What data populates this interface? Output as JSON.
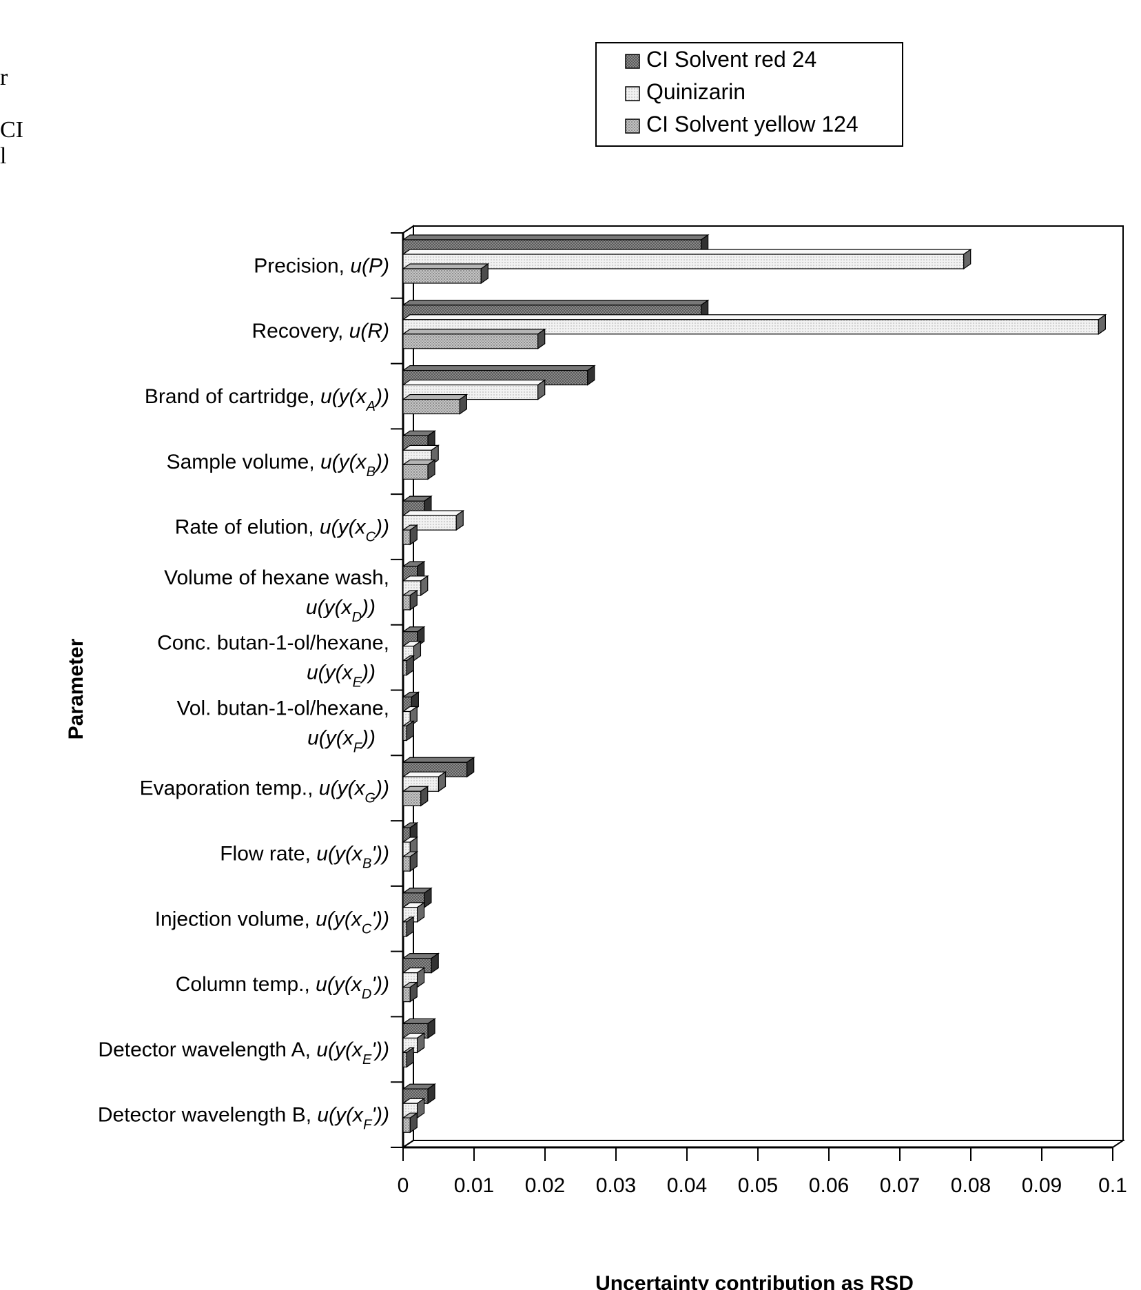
{
  "margin_fragments": [
    "r",
    "CI",
    "l"
  ],
  "chart_data": {
    "type": "bar",
    "orientation": "horizontal",
    "title": "",
    "xlabel": "Uncertainty contribution as RSD",
    "ylabel": "Parameter",
    "xlim": [
      0,
      0.1
    ],
    "xticks": [
      "0",
      "0.01",
      "0.02",
      "0.03",
      "0.04",
      "0.05",
      "0.06",
      "0.07",
      "0.08",
      "0.09",
      "0.1"
    ],
    "legend_position": "top-right",
    "grid": false,
    "categories": [
      [
        {
          "t": "Precision, "
        },
        {
          "t": "u(P)",
          "i": true
        }
      ],
      [
        {
          "t": "Recovery, "
        },
        {
          "t": "u(R)",
          "i": true
        }
      ],
      [
        {
          "t": "Brand of cartridge, "
        },
        {
          "t": "u(y(x",
          "i": true
        },
        {
          "t": "A",
          "i": true,
          "sub": true
        },
        {
          "t": "))",
          "i": true
        }
      ],
      [
        {
          "t": "Sample volume, "
        },
        {
          "t": "u(y(x",
          "i": true
        },
        {
          "t": "B",
          "i": true,
          "sub": true
        },
        {
          "t": "))",
          "i": true
        }
      ],
      [
        {
          "t": "Rate of elution, "
        },
        {
          "t": "u(y(x",
          "i": true
        },
        {
          "t": "C",
          "i": true,
          "sub": true
        },
        {
          "t": "))",
          "i": true
        }
      ],
      [
        {
          "t": "Volume of hexane wash,"
        },
        {
          "br": true
        },
        {
          "t": "u(y(x",
          "i": true
        },
        {
          "t": "D",
          "i": true,
          "sub": true
        },
        {
          "t": "))",
          "i": true
        }
      ],
      [
        {
          "t": "Conc. butan-1-ol/hexane,"
        },
        {
          "br": true
        },
        {
          "t": "u(y(x",
          "i": true
        },
        {
          "t": "E",
          "i": true,
          "sub": true
        },
        {
          "t": "))",
          "i": true
        }
      ],
      [
        {
          "t": "Vol. butan-1-ol/hexane,"
        },
        {
          "br": true
        },
        {
          "t": "u(y(x",
          "i": true
        },
        {
          "t": "F",
          "i": true,
          "sub": true
        },
        {
          "t": "))",
          "i": true
        }
      ],
      [
        {
          "t": "Evaporation temp., "
        },
        {
          "t": "u(y(x",
          "i": true
        },
        {
          "t": "G",
          "i": true,
          "sub": true
        },
        {
          "t": "))",
          "i": true
        }
      ],
      [
        {
          "t": "Flow rate, "
        },
        {
          "t": "u(y(x",
          "i": true
        },
        {
          "t": "B",
          "i": true,
          "sub": true
        },
        {
          "t": "'))",
          "i": true
        }
      ],
      [
        {
          "t": "Injection volume, "
        },
        {
          "t": "u(y(x",
          "i": true
        },
        {
          "t": "C",
          "i": true,
          "sub": true
        },
        {
          "t": "'))",
          "i": true
        }
      ],
      [
        {
          "t": "Column temp., "
        },
        {
          "t": "u(y(x",
          "i": true
        },
        {
          "t": "D",
          "i": true,
          "sub": true
        },
        {
          "t": "'))",
          "i": true
        }
      ],
      [
        {
          "t": "Detector wavelength A, "
        },
        {
          "t": "u(y(x",
          "i": true
        },
        {
          "t": "E",
          "i": true,
          "sub": true
        },
        {
          "t": "'))",
          "i": true
        }
      ],
      [
        {
          "t": "Detector wavelength B, "
        },
        {
          "t": "u(y(x",
          "i": true
        },
        {
          "t": "F",
          "i": true,
          "sub": true
        },
        {
          "t": "'))",
          "i": true
        }
      ]
    ],
    "series": [
      {
        "name": "CI Solvent red 24",
        "color": "#6f6f6f",
        "values": [
          0.042,
          0.042,
          0.026,
          0.0035,
          0.003,
          0.002,
          0.002,
          0.0012,
          0.009,
          0.001,
          0.003,
          0.004,
          0.0035,
          0.0035
        ]
      },
      {
        "name": "Quinizarin",
        "color": "#e6e6e6",
        "values": [
          0.079,
          0.098,
          0.019,
          0.004,
          0.0075,
          0.0025,
          0.0015,
          0.001,
          0.005,
          0.001,
          0.002,
          0.002,
          0.002,
          0.002
        ]
      },
      {
        "name": "CI Solvent yellow 124",
        "color": "#a8a8a8",
        "values": [
          0.011,
          0.019,
          0.008,
          0.0035,
          0.001,
          0.001,
          0.0005,
          0.0005,
          0.0025,
          0.001,
          0.0005,
          0.001,
          0.0005,
          0.001
        ]
      }
    ]
  }
}
